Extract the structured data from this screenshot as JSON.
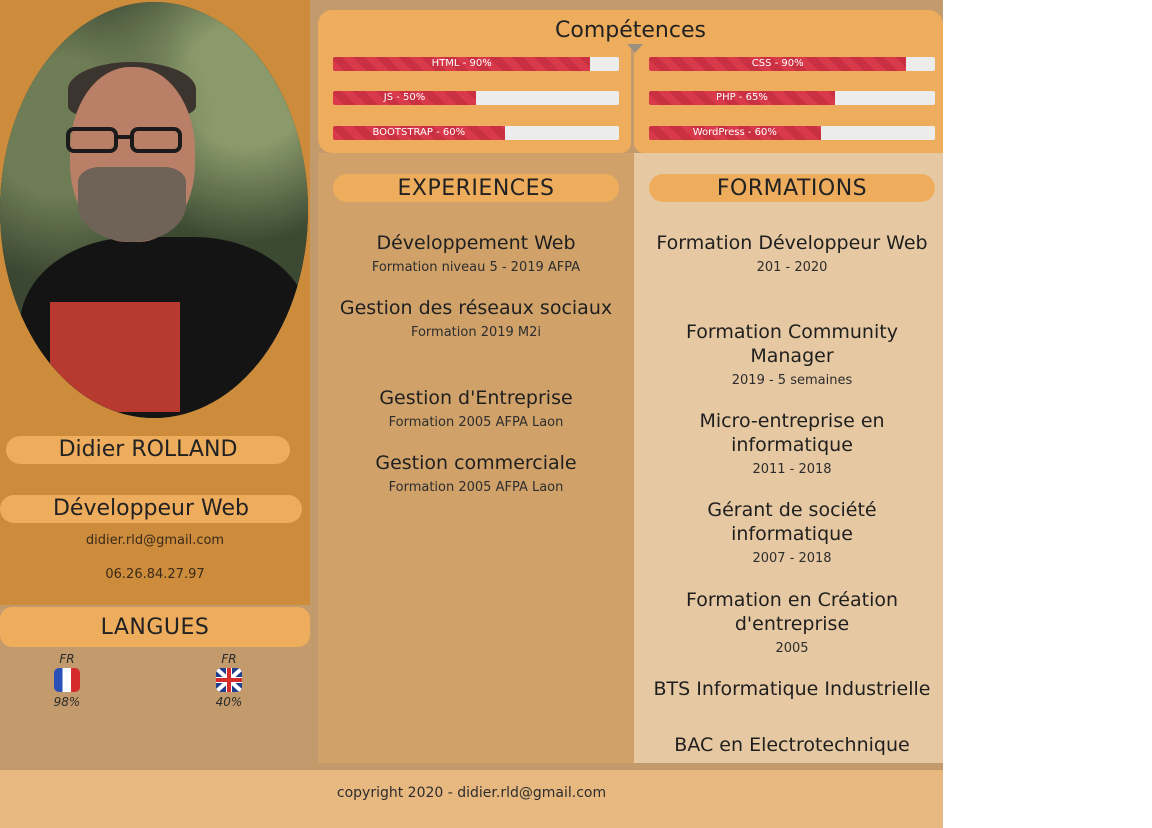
{
  "profile": {
    "name": "Didier ROLLAND",
    "job": "Développeur Web",
    "email": "didier.rld@gmail.com",
    "phone": "06.26.84.27.97"
  },
  "languages": {
    "title": "LANGUES",
    "items": [
      {
        "code": "FR",
        "flag": "france-flag",
        "level": "98%"
      },
      {
        "code": "FR",
        "flag": "uk-flag",
        "level": "40%"
      }
    ]
  },
  "skills": {
    "title": "Compétences",
    "items": [
      {
        "label": "HTML - 90%",
        "value": 0.9
      },
      {
        "label": "CSS - 90%",
        "value": 0.9
      },
      {
        "label": "JS - 50%",
        "value": 0.5
      },
      {
        "label": "PHP - 65%",
        "value": 0.65
      },
      {
        "label": "BOOTSTRAP - 60%",
        "value": 0.6
      },
      {
        "label": "WordPress - 60%",
        "value": 0.6
      }
    ],
    "bar_color": "#d83a4b"
  },
  "experiences": {
    "title": "EXPERIENCES",
    "items": [
      {
        "title": "Développement Web",
        "sub": "Formation niveau 5 - 2019 AFPA"
      },
      {
        "title": "Gestion des réseaux sociaux",
        "sub": "Formation 2019 M2i"
      },
      {
        "title": "Gestion d'Entreprise",
        "sub": "Formation 2005 AFPA Laon"
      },
      {
        "title": "Gestion commerciale",
        "sub": "Formation 2005 AFPA Laon"
      }
    ]
  },
  "formations": {
    "title": "FORMATIONS",
    "items": [
      {
        "title": "Formation Développeur Web",
        "sub": "201 - 2020"
      },
      {
        "title": "Formation Community Manager",
        "sub": "2019 - 5 semaines"
      },
      {
        "title": "Micro-entreprise en informatique",
        "sub": "2011 - 2018"
      },
      {
        "title": "Gérant de société informatique",
        "sub": "2007 - 2018"
      },
      {
        "title": "Formation en Création d'entreprise",
        "sub": "2005"
      },
      {
        "title": "BTS Informatique Industrielle",
        "sub": ""
      },
      {
        "title": "BAC en Electrotechnique",
        "sub": ""
      }
    ]
  },
  "footer": {
    "text": "copyright 2020 - didier.rld@gmail.com"
  },
  "colors": {
    "accent": "#eeac5d",
    "left_panel": "#cc8c3c",
    "experiences_bg": "#d0a26a",
    "formations_bg": "#e6c8a2",
    "footer_bg": "#e7b981"
  }
}
